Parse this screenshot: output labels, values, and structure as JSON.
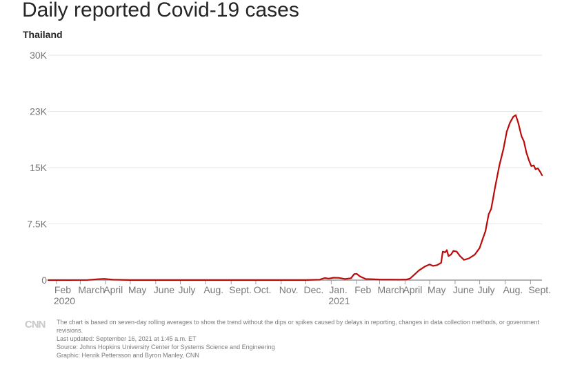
{
  "title": "Daily reported Covid-19 cases",
  "subtitle": "Thailand",
  "colors": {
    "line": "#bb0a0a",
    "grid": "#e6e6e6",
    "axis": "#9a9a9a",
    "label": "#777777"
  },
  "chart_data": {
    "type": "line",
    "title": "Daily reported Covid-19 cases",
    "subtitle": "Thailand",
    "xlabel": "",
    "ylabel": "",
    "ylim": [
      0,
      30000
    ],
    "xlim": [
      "2020-01-22",
      "2021-09-15"
    ],
    "grid": true,
    "y_ticks": [
      {
        "value": 0,
        "label": "0"
      },
      {
        "value": 7500,
        "label": "7.5K"
      },
      {
        "value": 15000,
        "label": "15K"
      },
      {
        "value": 22500,
        "label": "23K"
      },
      {
        "value": 30000,
        "label": "30K"
      }
    ],
    "x_ticks": [
      {
        "date": "2020-02-01",
        "label": "Feb",
        "sub": "2020"
      },
      {
        "date": "2020-03-01",
        "label": "March"
      },
      {
        "date": "2020-04-01",
        "label": "April"
      },
      {
        "date": "2020-05-01",
        "label": "May"
      },
      {
        "date": "2020-06-01",
        "label": "June"
      },
      {
        "date": "2020-07-01",
        "label": "July"
      },
      {
        "date": "2020-08-01",
        "label": "Aug."
      },
      {
        "date": "2020-09-01",
        "label": "Sept."
      },
      {
        "date": "2020-10-01",
        "label": "Oct."
      },
      {
        "date": "2020-11-01",
        "label": "Nov."
      },
      {
        "date": "2020-12-01",
        "label": "Dec."
      },
      {
        "date": "2021-01-01",
        "label": "Jan.",
        "sub": "2021"
      },
      {
        "date": "2021-02-01",
        "label": "Feb"
      },
      {
        "date": "2021-03-01",
        "label": "March"
      },
      {
        "date": "2021-04-01",
        "label": "April"
      },
      {
        "date": "2021-05-01",
        "label": "May"
      },
      {
        "date": "2021-06-01",
        "label": "June"
      },
      {
        "date": "2021-07-01",
        "label": "July"
      },
      {
        "date": "2021-08-01",
        "label": "Aug."
      },
      {
        "date": "2021-09-01",
        "label": "Sept."
      }
    ],
    "series": [
      {
        "points": [
          {
            "x": "2020-01-22",
            "y": 0
          },
          {
            "x": "2020-03-10",
            "y": 20
          },
          {
            "x": "2020-03-22",
            "y": 120
          },
          {
            "x": "2020-03-30",
            "y": 170
          },
          {
            "x": "2020-04-10",
            "y": 60
          },
          {
            "x": "2020-05-01",
            "y": 5
          },
          {
            "x": "2020-12-01",
            "y": 10
          },
          {
            "x": "2020-12-18",
            "y": 60
          },
          {
            "x": "2020-12-24",
            "y": 280
          },
          {
            "x": "2020-12-29",
            "y": 200
          },
          {
            "x": "2021-01-04",
            "y": 320
          },
          {
            "x": "2021-01-10",
            "y": 300
          },
          {
            "x": "2021-01-18",
            "y": 150
          },
          {
            "x": "2021-01-25",
            "y": 250
          },
          {
            "x": "2021-01-29",
            "y": 800
          },
          {
            "x": "2021-02-01",
            "y": 850
          },
          {
            "x": "2021-02-05",
            "y": 500
          },
          {
            "x": "2021-02-12",
            "y": 150
          },
          {
            "x": "2021-03-01",
            "y": 80
          },
          {
            "x": "2021-03-25",
            "y": 60
          },
          {
            "x": "2021-04-03",
            "y": 80
          },
          {
            "x": "2021-04-07",
            "y": 200
          },
          {
            "x": "2021-04-12",
            "y": 700
          },
          {
            "x": "2021-04-18",
            "y": 1300
          },
          {
            "x": "2021-04-25",
            "y": 1800
          },
          {
            "x": "2021-05-01",
            "y": 2100
          },
          {
            "x": "2021-05-05",
            "y": 1900
          },
          {
            "x": "2021-05-10",
            "y": 2000
          },
          {
            "x": "2021-05-15",
            "y": 2300
          },
          {
            "x": "2021-05-17",
            "y": 3800
          },
          {
            "x": "2021-05-20",
            "y": 3700
          },
          {
            "x": "2021-05-22",
            "y": 4000
          },
          {
            "x": "2021-05-24",
            "y": 3200
          },
          {
            "x": "2021-05-27",
            "y": 3400
          },
          {
            "x": "2021-05-30",
            "y": 3900
          },
          {
            "x": "2021-06-03",
            "y": 3800
          },
          {
            "x": "2021-06-07",
            "y": 3200
          },
          {
            "x": "2021-06-12",
            "y": 2700
          },
          {
            "x": "2021-06-18",
            "y": 2900
          },
          {
            "x": "2021-06-25",
            "y": 3400
          },
          {
            "x": "2021-07-01",
            "y": 4300
          },
          {
            "x": "2021-07-05",
            "y": 5600
          },
          {
            "x": "2021-07-08",
            "y": 6500
          },
          {
            "x": "2021-07-12",
            "y": 8800
          },
          {
            "x": "2021-07-15",
            "y": 9500
          },
          {
            "x": "2021-07-20",
            "y": 12500
          },
          {
            "x": "2021-07-25",
            "y": 15300
          },
          {
            "x": "2021-07-30",
            "y": 17500
          },
          {
            "x": "2021-08-03",
            "y": 19800
          },
          {
            "x": "2021-08-07",
            "y": 21000
          },
          {
            "x": "2021-08-11",
            "y": 21800
          },
          {
            "x": "2021-08-14",
            "y": 22000
          },
          {
            "x": "2021-08-17",
            "y": 21000
          },
          {
            "x": "2021-08-21",
            "y": 19200
          },
          {
            "x": "2021-08-24",
            "y": 18500
          },
          {
            "x": "2021-08-27",
            "y": 17000
          },
          {
            "x": "2021-08-30",
            "y": 16000
          },
          {
            "x": "2021-09-02",
            "y": 15200
          },
          {
            "x": "2021-09-05",
            "y": 15300
          },
          {
            "x": "2021-09-07",
            "y": 14800
          },
          {
            "x": "2021-09-10",
            "y": 14900
          },
          {
            "x": "2021-09-13",
            "y": 14400
          },
          {
            "x": "2021-09-15",
            "y": 14000
          }
        ]
      }
    ]
  },
  "footer": {
    "logo": "CNN",
    "note": "The chart is based on seven-day rolling averages to show the trend without the dips or spikes caused by delays in reporting, changes in data collection methods, or government revisions.",
    "updated": "Last updated: September 16, 2021 at 1:45 a.m. ET",
    "source": "Source: Johns Hopkins University Center for Systems Science and Engineering",
    "graphic": "Graphic: Henrik Pettersson and Byron Manley, CNN"
  }
}
